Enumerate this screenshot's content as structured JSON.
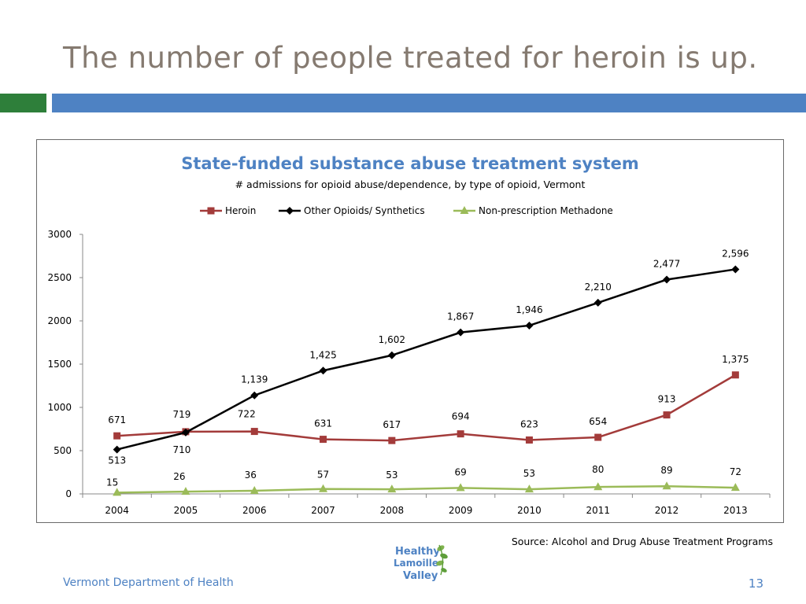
{
  "slide": {
    "title": "The number of people treated for heroin is up.",
    "source": "Source: Alcohol and Drug Abuse Treatment Programs",
    "footer_left": "Vermont Department of Health",
    "page_number": "13",
    "logo_text": [
      "Healthy",
      "Lamoille",
      "Valley"
    ]
  },
  "colors": {
    "title": "#857A70",
    "accent_green": "#2E7F3A",
    "accent_blue": "#4E82C3",
    "heroin": "#A33B3A",
    "other_opioids": "#000000",
    "methadone": "#9BBB59",
    "chart_title": "#4E82C3"
  },
  "chart_data": {
    "type": "line",
    "title": "State-funded substance abuse treatment system",
    "subtitle": "# admissions for opioid abuse/dependence, by type of opioid, Vermont",
    "categories": [
      "2004",
      "2005",
      "2006",
      "2007",
      "2008",
      "2009",
      "2010",
      "2011",
      "2012",
      "2013"
    ],
    "ylim": [
      0,
      3000
    ],
    "yticks": [
      "0",
      "500",
      "1000",
      "1500",
      "2000",
      "2500",
      "3000"
    ],
    "grid": false,
    "legend_position": "top",
    "series": [
      {
        "name": "Heroin",
        "marker": "square",
        "color": "#A33B3A",
        "values": [
          671,
          719,
          722,
          631,
          617,
          694,
          623,
          654,
          913,
          1375
        ],
        "labels": [
          "671",
          "719",
          "722",
          "631",
          "617",
          "694",
          "623",
          "654",
          "913",
          "1,375"
        ]
      },
      {
        "name": "Other Opioids/ Synthetics",
        "marker": "diamond",
        "color": "#000000",
        "values": [
          513,
          710,
          1139,
          1425,
          1602,
          1867,
          1946,
          2210,
          2477,
          2596
        ],
        "labels": [
          "513",
          "710",
          "1,139",
          "1,425",
          "1,602",
          "1,867",
          "1,946",
          "2,210",
          "2,477",
          "2,596"
        ]
      },
      {
        "name": "Non-prescription Methadone",
        "marker": "triangle",
        "color": "#9BBB59",
        "values": [
          15,
          26,
          36,
          57,
          53,
          69,
          53,
          80,
          89,
          72
        ],
        "labels": [
          "15",
          "26",
          "36",
          "57",
          "53",
          "69",
          "53",
          "80",
          "89",
          "72"
        ]
      }
    ]
  }
}
